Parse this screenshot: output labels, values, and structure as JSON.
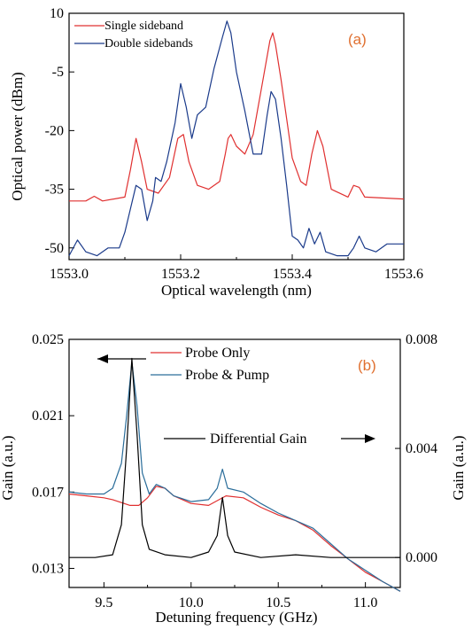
{
  "chart_data": [
    {
      "type": "line",
      "panel_label": "(a)",
      "xlabel": "Optical wavelength (nm)",
      "ylabel": "Optical power (dBm)",
      "xlim": [
        1553.0,
        1553.6
      ],
      "ylim": [
        -53,
        10
      ],
      "xticks": [
        "1553.0",
        "1553.2",
        "1553.4",
        "1553.6"
      ],
      "xtick_values": [
        1553.0,
        1553.2,
        1553.4,
        1553.6
      ],
      "yticks": [
        "10",
        "-5",
        "-20",
        "-35",
        "-50"
      ],
      "ytick_values": [
        10,
        -5,
        -20,
        -35,
        -50
      ],
      "legend_position": "top-left",
      "series": [
        {
          "name": "Single sideband",
          "color": "#e03030",
          "points": [
            [
              1553.0,
              -38
            ],
            [
              1553.03,
              -38
            ],
            [
              1553.045,
              -36.8
            ],
            [
              1553.06,
              -38
            ],
            [
              1553.1,
              -37
            ],
            [
              1553.11,
              -30
            ],
            [
              1553.12,
              -22
            ],
            [
              1553.13,
              -28
            ],
            [
              1553.14,
              -35
            ],
            [
              1553.16,
              -36
            ],
            [
              1553.18,
              -32
            ],
            [
              1553.195,
              -22
            ],
            [
              1553.205,
              -21
            ],
            [
              1553.215,
              -28
            ],
            [
              1553.23,
              -34
            ],
            [
              1553.25,
              -35
            ],
            [
              1553.27,
              -33
            ],
            [
              1553.28,
              -26
            ],
            [
              1553.285,
              -22
            ],
            [
              1553.29,
              -21
            ],
            [
              1553.3,
              -24
            ],
            [
              1553.315,
              -26
            ],
            [
              1553.33,
              -21
            ],
            [
              1553.345,
              -9
            ],
            [
              1553.36,
              3
            ],
            [
              1553.365,
              5
            ],
            [
              1553.37,
              2
            ],
            [
              1553.38,
              -7
            ],
            [
              1553.39,
              -17
            ],
            [
              1553.4,
              -27
            ],
            [
              1553.415,
              -33
            ],
            [
              1553.425,
              -34
            ],
            [
              1553.435,
              -26
            ],
            [
              1553.445,
              -20
            ],
            [
              1553.455,
              -24
            ],
            [
              1553.47,
              -35
            ],
            [
              1553.5,
              -37
            ],
            [
              1553.51,
              -34
            ],
            [
              1553.52,
              -34.5
            ],
            [
              1553.53,
              -37
            ],
            [
              1553.6,
              -37.5
            ]
          ]
        },
        {
          "name": "Double sidebands",
          "color": "#1a3a8a",
          "points": [
            [
              1553.0,
              -52
            ],
            [
              1553.015,
              -48
            ],
            [
              1553.03,
              -51
            ],
            [
              1553.05,
              -52
            ],
            [
              1553.07,
              -50
            ],
            [
              1553.09,
              -50
            ],
            [
              1553.1,
              -46
            ],
            [
              1553.11,
              -40
            ],
            [
              1553.12,
              -34
            ],
            [
              1553.13,
              -35
            ],
            [
              1553.14,
              -43
            ],
            [
              1553.15,
              -38
            ],
            [
              1553.155,
              -32
            ],
            [
              1553.165,
              -33
            ],
            [
              1553.175,
              -28
            ],
            [
              1553.19,
              -18
            ],
            [
              1553.2,
              -8
            ],
            [
              1553.21,
              -14
            ],
            [
              1553.22,
              -22
            ],
            [
              1553.23,
              -16
            ],
            [
              1553.245,
              -14
            ],
            [
              1553.26,
              -4
            ],
            [
              1553.275,
              4
            ],
            [
              1553.283,
              8
            ],
            [
              1553.29,
              5
            ],
            [
              1553.3,
              -5
            ],
            [
              1553.315,
              -15
            ],
            [
              1553.33,
              -26
            ],
            [
              1553.345,
              -26
            ],
            [
              1553.355,
              -16
            ],
            [
              1553.362,
              -10
            ],
            [
              1553.37,
              -12
            ],
            [
              1553.38,
              -22
            ],
            [
              1553.39,
              -34
            ],
            [
              1553.4,
              -47
            ],
            [
              1553.41,
              -48
            ],
            [
              1553.42,
              -50
            ],
            [
              1553.43,
              -45
            ],
            [
              1553.44,
              -49
            ],
            [
              1553.45,
              -46
            ],
            [
              1553.46,
              -51
            ],
            [
              1553.48,
              -52
            ],
            [
              1553.5,
              -52
            ],
            [
              1553.51,
              -50
            ],
            [
              1553.52,
              -47
            ],
            [
              1553.53,
              -50
            ],
            [
              1553.55,
              -51
            ],
            [
              1553.57,
              -49
            ],
            [
              1553.6,
              -49
            ]
          ]
        }
      ]
    },
    {
      "type": "line",
      "panel_label": "(b)",
      "xlabel": "Detuning frequency (GHz)",
      "ylabel_left": "Gain (a.u.)",
      "ylabel_right": "Gain (a.u.)",
      "xlim": [
        9.3,
        11.2
      ],
      "ylim_left": [
        0.012,
        0.025
      ],
      "ylim_right": [
        -0.0011,
        0.008
      ],
      "xticks": [
        "9.5",
        "10.0",
        "10.5",
        "11.0"
      ],
      "xtick_values": [
        9.5,
        10.0,
        10.5,
        11.0
      ],
      "yticks_left": [
        "0.025",
        "0.021",
        "0.017",
        "0.013"
      ],
      "ytick_values_left": [
        0.025,
        0.021,
        0.017,
        0.013
      ],
      "yticks_right": [
        "0.008",
        "0.004",
        "0.000"
      ],
      "ytick_values_right": [
        0.008,
        0.004,
        0.0
      ],
      "legend_position": "top-center",
      "annotation": "Differential Gain",
      "series": [
        {
          "name": "Probe Only",
          "color": "#e03030",
          "axis": "left",
          "points": [
            [
              9.3,
              0.0169
            ],
            [
              9.4,
              0.0168
            ],
            [
              9.5,
              0.0167
            ],
            [
              9.55,
              0.0166
            ],
            [
              9.6,
              0.01645
            ],
            [
              9.65,
              0.0163
            ],
            [
              9.7,
              0.0163
            ],
            [
              9.75,
              0.0167
            ],
            [
              9.8,
              0.0173
            ],
            [
              9.85,
              0.0172
            ],
            [
              9.9,
              0.0168
            ],
            [
              10.0,
              0.0164
            ],
            [
              10.1,
              0.0163
            ],
            [
              10.2,
              0.0168
            ],
            [
              10.3,
              0.0167
            ],
            [
              10.4,
              0.0162
            ],
            [
              10.5,
              0.0158
            ],
            [
              10.6,
              0.0155
            ],
            [
              10.7,
              0.015
            ],
            [
              10.8,
              0.0142
            ],
            [
              10.9,
              0.0135
            ],
            [
              11.0,
              0.0128
            ],
            [
              11.1,
              0.0123
            ],
            [
              11.2,
              0.0118
            ]
          ]
        },
        {
          "name": "Probe & Pump",
          "color": "#2a6d9a",
          "axis": "left",
          "points": [
            [
              9.3,
              0.017
            ],
            [
              9.4,
              0.0169
            ],
            [
              9.5,
              0.0169
            ],
            [
              9.55,
              0.0172
            ],
            [
              9.6,
              0.0185
            ],
            [
              9.63,
              0.021
            ],
            [
              9.66,
              0.0238
            ],
            [
              9.69,
              0.0215
            ],
            [
              9.72,
              0.018
            ],
            [
              9.76,
              0.0169
            ],
            [
              9.8,
              0.0174
            ],
            [
              9.85,
              0.0172
            ],
            [
              9.9,
              0.0168
            ],
            [
              10.0,
              0.0165
            ],
            [
              10.1,
              0.0166
            ],
            [
              10.15,
              0.0172
            ],
            [
              10.18,
              0.0182
            ],
            [
              10.21,
              0.0172
            ],
            [
              10.3,
              0.017
            ],
            [
              10.4,
              0.0164
            ],
            [
              10.5,
              0.0159
            ],
            [
              10.6,
              0.0155
            ],
            [
              10.7,
              0.0151
            ],
            [
              10.8,
              0.0143
            ],
            [
              10.9,
              0.0135
            ],
            [
              11.0,
              0.0129
            ],
            [
              11.1,
              0.0123
            ],
            [
              11.2,
              0.0118
            ]
          ]
        },
        {
          "name": "Differential Gain",
          "color": "#000000",
          "axis": "right",
          "points": [
            [
              9.3,
              0.0
            ],
            [
              9.45,
              0.0
            ],
            [
              9.55,
              0.0001
            ],
            [
              9.6,
              0.0012
            ],
            [
              9.63,
              0.004
            ],
            [
              9.66,
              0.0073
            ],
            [
              9.69,
              0.0045
            ],
            [
              9.72,
              0.0012
            ],
            [
              9.76,
              0.0003
            ],
            [
              9.85,
              0.0001
            ],
            [
              10.0,
              0.0
            ],
            [
              10.1,
              0.0002
            ],
            [
              10.15,
              0.0008
            ],
            [
              10.18,
              0.0022
            ],
            [
              10.21,
              0.0008
            ],
            [
              10.25,
              0.0002
            ],
            [
              10.4,
              0.0
            ],
            [
              10.6,
              0.0001
            ],
            [
              10.8,
              0.0
            ],
            [
              11.0,
              0.0
            ],
            [
              11.2,
              0.0
            ]
          ]
        }
      ]
    }
  ]
}
